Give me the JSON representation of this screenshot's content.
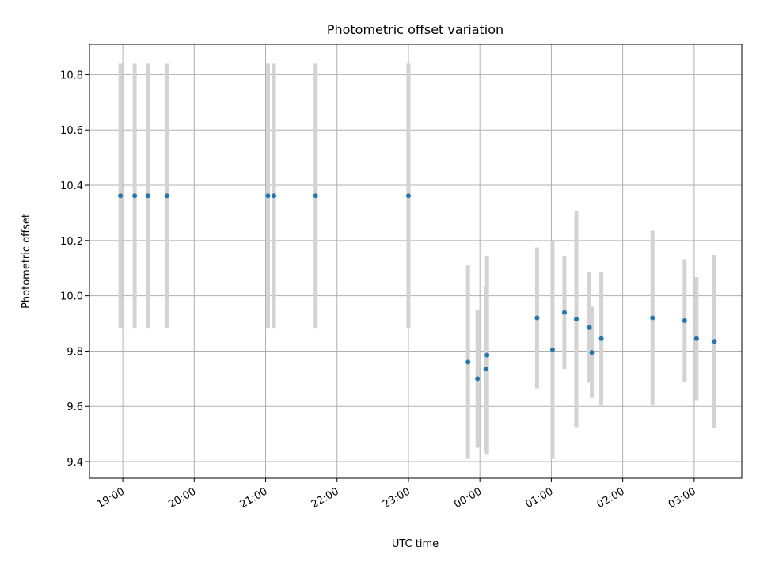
{
  "chart_data": {
    "type": "scatter",
    "title": "Photometric offset variation",
    "xlabel": "UTC time",
    "ylabel": "Photometric offset",
    "x_tick_labels": [
      "19:00",
      "20:00",
      "21:00",
      "22:00",
      "23:00",
      "00:00",
      "01:00",
      "02:00",
      "03:00"
    ],
    "y_tick_labels": [
      "9.4",
      "9.6",
      "9.8",
      "10.0",
      "10.2",
      "10.4",
      "10.6",
      "10.8"
    ],
    "x_ticks": [
      "19:00",
      "20:00",
      "21:00",
      "22:00",
      "23:00",
      "00:00",
      "01:00",
      "02:00",
      "03:00"
    ],
    "y_ticks": [
      9.4,
      9.6,
      9.8,
      10.0,
      10.2,
      10.4,
      10.6,
      10.8
    ],
    "xlim": [
      "18:32",
      "27:40"
    ],
    "ylim": [
      9.34,
      10.91
    ],
    "grid": true,
    "marker_color": "#1f77b4",
    "errorbar_color": "#d3d3d3",
    "points": [
      {
        "x": "18:58",
        "y": 10.362,
        "yerr": 0.478
      },
      {
        "x": "19:10",
        "y": 10.362,
        "yerr": 0.478
      },
      {
        "x": "19:21",
        "y": 10.362,
        "yerr": 0.478
      },
      {
        "x": "19:37",
        "y": 10.362,
        "yerr": 0.478
      },
      {
        "x": "21:02",
        "y": 10.362,
        "yerr": 0.478
      },
      {
        "x": "21:07",
        "y": 10.362,
        "yerr": 0.478
      },
      {
        "x": "21:42",
        "y": 10.362,
        "yerr": 0.478
      },
      {
        "x": "23:00",
        "y": 10.362,
        "yerr": 0.478
      },
      {
        "x": "23:50",
        "y": 9.76,
        "yerr": 0.35
      },
      {
        "x": "23:58",
        "y": 9.7,
        "yerr": 0.25
      },
      {
        "x": "00:05",
        "y": 9.735,
        "yerr": 0.3
      },
      {
        "x": "00:06",
        "y": 9.785,
        "yerr": 0.36
      },
      {
        "x": "00:48",
        "y": 9.92,
        "yerr": 0.255
      },
      {
        "x": "01:01",
        "y": 9.805,
        "yerr": 0.395
      },
      {
        "x": "01:11",
        "y": 9.94,
        "yerr": 0.205
      },
      {
        "x": "01:21",
        "y": 9.915,
        "yerr": 0.39
      },
      {
        "x": "01:32",
        "y": 9.885,
        "yerr": 0.2
      },
      {
        "x": "01:34",
        "y": 9.795,
        "yerr": 0.165
      },
      {
        "x": "01:42",
        "y": 9.845,
        "yerr": 0.24
      },
      {
        "x": "02:25",
        "y": 9.92,
        "yerr": 0.315
      },
      {
        "x": "02:52",
        "y": 9.91,
        "yerr": 0.222
      },
      {
        "x": "03:02",
        "y": 9.845,
        "yerr": 0.223
      },
      {
        "x": "03:17",
        "y": 9.835,
        "yerr": 0.313
      }
    ]
  }
}
